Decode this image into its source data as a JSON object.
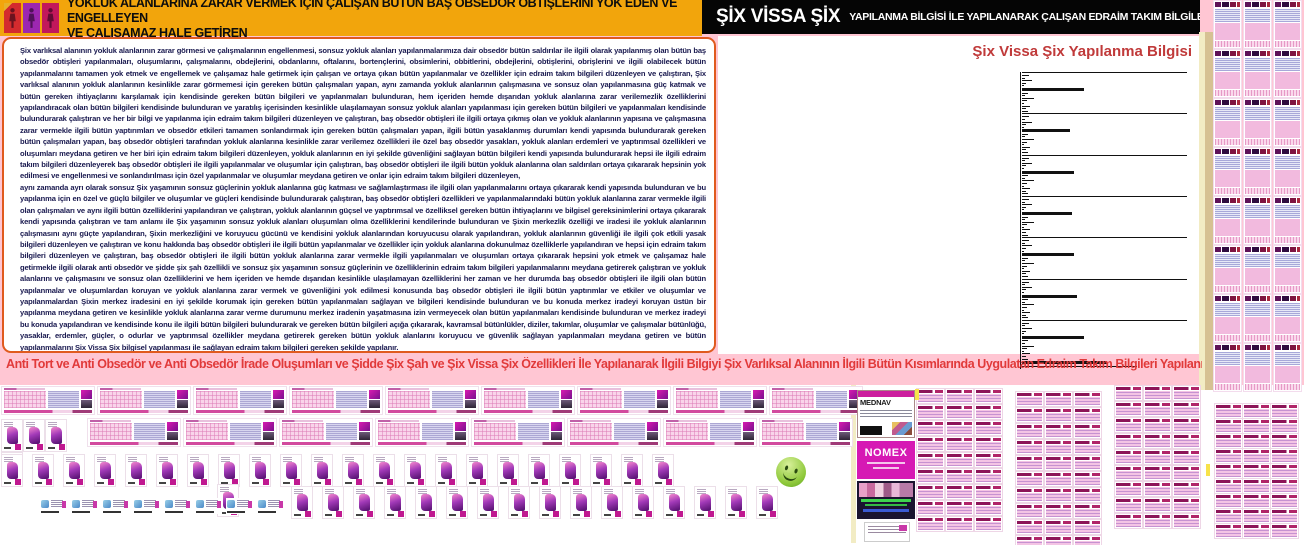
{
  "page": {
    "bg_pink": "#ffc6d3",
    "bg_bottom": "#ffffff"
  },
  "top_banner": {
    "bg": "#f2a50c",
    "line1": "YOKLUK ALANLARINA ZARAR VERMEK İÇİN ÇALIŞAN BÜTÜN BAŞ OBSEDÖR OBTİŞLERİNİ YOK EDEN VE ENGELLEYEN",
    "line2": "VE ÇALIŞAMAZ HALE GETİREN"
  },
  "title_bar": {
    "bg": "#050505",
    "title": "ŞİX VİSSA ŞİX",
    "subtitle": "YAPILANMA BİLGİSİ İLE YAPILANARAK ÇALIŞAN EDRAİM TAKIM BİLGİLERİ",
    "text_color": "#ffffff"
  },
  "main_text": {
    "border_color": "#e05a1e",
    "text_color": "#19194f",
    "paragraph1": "Şix varlıksal alanının yokluk alanlarının zarar görmesi ve çalışmalarının engellenmesi, sonsuz yokluk alanları yapılanmalarımıza dair obsedör bütün saldırılar ile ilgili olarak yapılanmış olan bütün baş obsedör obtişleri yapılanmaları, oluşumlarını, çalışmalarını, obdejlerini, obdanlarını, oftalarını, bortençlerini, obsimlerini, obbitlerini, obdejlerini, obtişlerini, obrişlerini ve ilgili olabilecek bütün yapılanmalarını tamamen yok etmek ve engellemek ve çalışamaz hale getirmek için çalışan ve ortaya çıkan bütün yapılanmalar ve özellikler için edraim takım bilgileri düzenleyen ve çalıştıran, Şix varlıksal alanının yokluk alanlarının kesinlikle zarar görmemesi için gereken bütün çalışmaları yapan, aynı zamanda yokluk alanlarının çalışmasına ve sonsuz olan yapılanmasına güç katmak ve bütün gereken ihtiyaçlarını karşılamak için kendisinde gereken bütün bilgileri ve yapılanmaları bulunduran, hem içeriden hemde dışarıdan yokluk alanlarına zarar verilemezlik özelliklerini yapılandıracak olan bütün bilgileri kendisinde bulunduran ve yaratılış içerisinden kesinlikle ulaşılamayan sonsuz yokluk alanları yapılanması için gereken bütün bilgileri ve yapılanmaları kendisinde bulundurarak çalıştıran ve her bir bilgi ve yapılanma için edraim takım bilgileri düzenleyen ve çalıştıran, baş obsedör obtişleri ile ilgili ortaya çıkmış olan ve yokluk alanlarının yapısına ve çalışmasına zarar vermekle ilgili bütün yaptırımları ve obsedör etkileri tamamen sonlandırmak için gereken bütün çalışmaları yapan, ilgili bütün yasaklanmış durumları kendi yapısında bulundurarak gereken bütün çalışmaları yapan, baş obsedör obtişleri tarafından yokluk alanlarına kesinlikle zarar verilemez özellikleri ile özel baş obsedör yasakları, yokluk alanları erdemleri ve yaptırımsal özellikleri ve oluşumları meydana getiren ve her biri için edraim takım bilgileri düzenleyen, yokluk alanlarının en iyi şekilde güvenliğini sağlayan bütün bilgileri kendi yapısında bulundurarak hepsi ile ilgili edraim takım bilgileri düzenleyerek baş obsedör obtişleri ile ilgili yapılanmalar ve oluşumlar için çalıştıran, baş obsedör obtişleri ile ilgili bütün yokluk alanlarına olan saldırıları ortaya çıkararak hepsinin yok edilmesi ve engellenmesi ve sonlandırılması için özel yapılanmalar ve oluşumlar meydana getiren ve onlar için edraim takım bilgileri düzenleyen,",
    "paragraph2": "aynı zamanda ayrı olarak sonsuz Şix yaşamının sonsuz güçlerinin yokluk alanlarına güç katması ve sağlamlaştırması ile ilgili olan yapılanmalarını ortaya çıkararak kendi yapısında bulunduran ve bu yapılanma için en özel ve güçlü bilgiler ve oluşumlar ve güçleri kendisinde bulundurarak çalıştıran, baş obsedör obtişleri özellikleri ve yapılanmalarındaki bütün yokluk alanlarına zarar vermekle ilgili olan çalışmaları ve aynı ilgili bütün özelliklerini yapılandıran ve çalıştıran, yokluk alanlarının güçsel ve yaptırımsal ve özelliksel gereken bütün ihtiyaçlarını ve bilgisel gereksinimlerini ortaya çıkararak kendi yapısında çalıştıran ve tam anlamı ile Şix yaşamının sonsuz yokluk alanları oluşumları olma özelliklerini kendilerinde bulunduran ve Şixin merkezlik özelliği ve iradesi ile yokluk alanlarının çalışmasını aynı güçte yapılandıran, Şixin merkezliğini ve koruyucu gücünü ve kendisini yokluk alanlarından koruyucusu olarak yapılandıran, yokluk alanlarının güvenliği ile ilgili çok etkili yasak bilgileri düzenleyen ve çalıştıran ve konu hakkında baş obsedör obtişleri ile ilgili bütün yapılanmalar ve özellikler için yokluk alanlarına dokunulmaz özelliklerle yapılandıran ve hepsi için edraim takım bilgileri düzenleyen ve çalıştıran, baş obsedör obtişleri ile ilgili bütün yokluk alanlarına zarar vermekle ilgili yapılanmaları ve oluşumları ortaya çıkararak hepsini yok etmek ve çalışamaz hale getirmekle ilgili olarak anti obsedör ve şidde şix şah özellikli ve sonsuz şix yaşamının sonsuz güçlerinin ve özelliklerinin edraim takım bilgileri yapılanmalarını meydana getirerek çalıştıran ve yokluk alanlarını ve çalışmasını ve sonsuz olan özelliklerini ve hem içeriden ve hemde dışarıdan kesinlikle ulaşılamayan özelliklerini her zaman ve her durumda baş obsedör obtişleri ile ilgili olan bütün yapılanmalar ve oluşumlardan koruyan ve yokluk alanlarına zarar vermek ve güvenliğini yok edilmesi konusunda baş obsedör obtişleri ile ilgili bütün yaptırımlar ve etkiler ve oluşumlar ve yapılanmalardan Şixin merkez iradesini en iyi şekilde korumak için gereken bütün yapılanmaları sağlayan ve bilgileri kendisinde bulunduran ve bu konuda merkez iradeyi koruyan üstün bir yapılanma meydana getiren ve kesinlikle yokluk alanlarına zarar verme durumunu merkez iradenin yaşatmasına izin vermeyecek olan bütün yapılanmaları kendisinde bulunduran ve merkez iradeyi bu konuda yapılandıran ve kendisinde konu ile ilgili bütün bilgileri bulundurarak ve gereken bütün bilgileri açığa çıkararak, kavramsal bütünlükler, diziler, takımlar, oluşumlar ve çalışmalar bütünlüğü, yasaklar, erdemler, güçler, o odurlar ve yaptırımsal özellikler meydana getirerek gereken bütün yokluk alanlarını koruyucu ve güvenlik sağlayan yapılanmaları meydana getiren ve bütün yapılanmalarını Şix Vissa Şix bilgisel yapılanması ile sağlayan edraim takım bilgileri gereken şekilde yapılanır."
  },
  "section_title": {
    "text": "Şix Vissa Şix Yapılanma Bilgisi",
    "color": "#c03a3a"
  },
  "headline": {
    "text": "Anti Tort ve Anti Obsedör ve Anti Obsedör İrade Oluşumları ve Şidde Şix Şah ve Şix Vissa Şix Özellikleri İle Yapılanarak İlgili Bilgiyi Şix Varlıksal Alanının İlgili Bütün Kısımlarında Uygulatan Edraim Takım Bilgileri Yapılanması",
    "color": "#e13a3a"
  },
  "cards": {
    "mednav": {
      "title": "MEDNAV"
    },
    "nomex": {
      "title": "NOMEX"
    }
  },
  "minimap": {
    "long_line_w": 165,
    "tick_pattern": [
      7,
      3,
      10,
      4,
      2,
      6,
      3,
      12,
      5,
      2,
      8,
      4,
      6
    ],
    "groups": [
      {
        "bold": 62
      },
      {
        "bold": 48
      },
      {
        "bold": 52
      },
      {
        "bold": 50
      },
      {
        "bold": 52
      },
      {
        "bold": 55
      },
      {
        "bold": 62
      }
    ],
    "footer": {
      "bold": 85,
      "thin": 115
    }
  },
  "decor": {
    "right_doc_thumbs": {
      "count": 24
    },
    "right_mini_grid": {
      "count": 27
    },
    "bottom_grid_1": {
      "count": 27
    },
    "bottom_grid_2": {
      "count": 30
    },
    "bottom_grid_3": {
      "count": 27
    },
    "landscape_row_a": {
      "count": 9
    },
    "landscape_row_b": {
      "count": 8
    },
    "product_row_b": {
      "count": 4
    },
    "product_row_c": {
      "count": 22
    },
    "product_row_d": {
      "count": 16
    },
    "icon_strip": {
      "count": 8
    }
  }
}
